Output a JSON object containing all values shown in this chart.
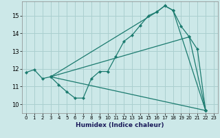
{
  "xlabel": "Humidex (Indice chaleur)",
  "bg_color": "#cce8e8",
  "line_color": "#1a7a6e",
  "grid_color": "#aacfcf",
  "xlim": [
    -0.5,
    23.5
  ],
  "ylim": [
    9.5,
    15.8
  ],
  "yticks": [
    10,
    11,
    12,
    13,
    14,
    15
  ],
  "xticks": [
    0,
    1,
    2,
    3,
    4,
    5,
    6,
    7,
    8,
    9,
    10,
    11,
    12,
    13,
    14,
    15,
    16,
    17,
    18,
    19,
    20,
    21,
    22,
    23
  ],
  "lines": [
    {
      "x": [
        0,
        1,
        2,
        3,
        4,
        5,
        6,
        7,
        8,
        9,
        10,
        11,
        12,
        13,
        14,
        15,
        16,
        17,
        18,
        19,
        20,
        21,
        22
      ],
      "y": [
        11.8,
        11.95,
        11.45,
        11.55,
        11.1,
        10.7,
        10.35,
        10.35,
        11.45,
        11.85,
        11.85,
        12.7,
        13.55,
        13.9,
        14.45,
        15.0,
        15.2,
        15.55,
        15.3,
        14.4,
        13.8,
        13.1,
        9.65
      ]
    },
    {
      "x": [
        3,
        16,
        17,
        18,
        22
      ],
      "y": [
        11.55,
        15.2,
        15.55,
        15.3,
        9.65
      ]
    },
    {
      "x": [
        3,
        20,
        22
      ],
      "y": [
        11.55,
        13.8,
        9.65
      ]
    },
    {
      "x": [
        3,
        22
      ],
      "y": [
        11.55,
        9.65
      ]
    }
  ]
}
